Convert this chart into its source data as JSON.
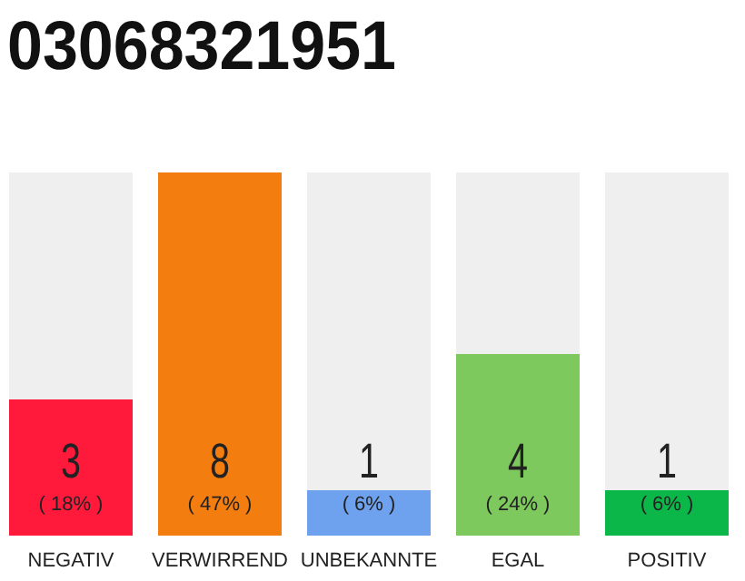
{
  "chart_data": {
    "type": "bar",
    "title": "03068321951",
    "categories": [
      "NEGATIV",
      "VERWIRREND",
      "UNBEKANNTE",
      "EGAL",
      "POSITIV"
    ],
    "values": [
      3,
      8,
      1,
      4,
      1
    ],
    "colors": [
      "#ff1a3c",
      "#f47d10",
      "#6ea2ee",
      "#7ec95e",
      "#0cb74a"
    ],
    "ylim": [
      0,
      8
    ],
    "tick_labels": "x",
    "data_labels": true,
    "annotations": [
      "( 18% )",
      "( 47% )",
      "( 6% )",
      "( 24% )",
      "( 6% )"
    ]
  }
}
